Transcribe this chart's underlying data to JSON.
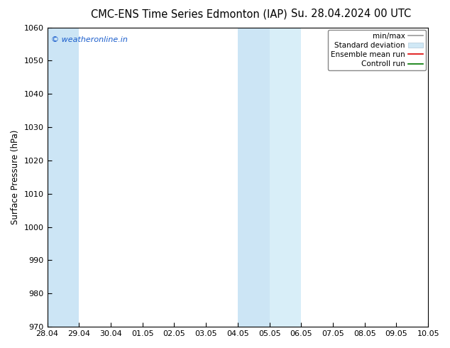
{
  "title_left": "CMC-ENS Time Series Edmonton (IAP)",
  "title_right": "Su. 28.04.2024 00 UTC",
  "ylabel": "Surface Pressure (hPa)",
  "ylim": [
    970,
    1060
  ],
  "yticks": [
    970,
    980,
    990,
    1000,
    1010,
    1020,
    1030,
    1040,
    1050,
    1060
  ],
  "xlim_start": 0,
  "xlim_end": 12,
  "xtick_labels": [
    "28.04",
    "29.04",
    "30.04",
    "01.05",
    "02.05",
    "03.05",
    "04.05",
    "05.05",
    "06.05",
    "07.05",
    "08.05",
    "09.05",
    "10.05"
  ],
  "xtick_positions": [
    0,
    1,
    2,
    3,
    4,
    5,
    6,
    7,
    8,
    9,
    10,
    11,
    12
  ],
  "shaded_regions": [
    {
      "xmin": 0,
      "xmax": 1,
      "color": "#cce5f5"
    },
    {
      "xmin": 6,
      "xmax": 7,
      "color": "#cce5f5"
    },
    {
      "xmin": 7,
      "xmax": 8,
      "color": "#d8eef8"
    }
  ],
  "watermark": "© weatheronline.in",
  "watermark_color": "#1a5dcc",
  "legend_labels": [
    "min/max",
    "Standard deviation",
    "Ensemble mean run",
    "Controll run"
  ],
  "legend_line_colors": [
    "#999999",
    "#cccccc",
    "#dd0000",
    "#007700"
  ],
  "background_color": "#ffffff",
  "plot_bg_color": "#ffffff",
  "spine_color": "#000000",
  "title_fontsize": 10.5,
  "ylabel_fontsize": 8.5,
  "tick_fontsize": 8,
  "watermark_fontsize": 8,
  "legend_fontsize": 7.5
}
